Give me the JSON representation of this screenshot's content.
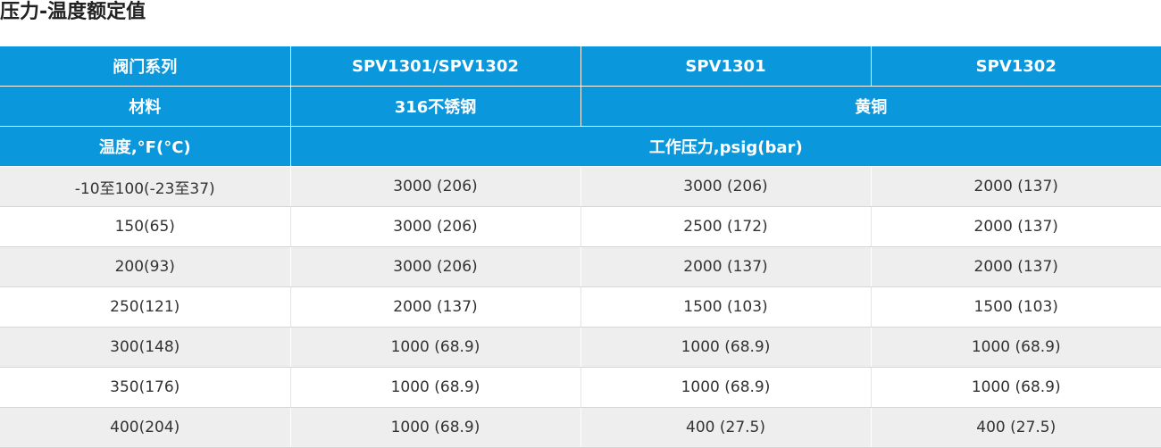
{
  "title": "压力-温度额定值",
  "header": {
    "row1": [
      "阀门系列",
      "SPV1301/SPV1302",
      "SPV1301",
      "SPV1302"
    ],
    "row2": [
      "材料",
      "316不锈钢",
      "黄铜"
    ],
    "row3": [
      "温度,°F(°C)",
      "工作压力,psig(bar)"
    ]
  },
  "rows": [
    [
      "-10至100(-23至37)",
      "3000 (206)",
      "3000 (206)",
      "2000 (137)"
    ],
    [
      "150(65)",
      "3000 (206)",
      "2500 (172)",
      "2000 (137)"
    ],
    [
      "200(93)",
      "3000 (206)",
      "2000 (137)",
      "2000 (137)"
    ],
    [
      "250(121)",
      "2000 (137)",
      "1500 (103)",
      "1500 (103)"
    ],
    [
      "300(148)",
      "1000 (68.9)",
      "1000 (68.9)",
      "1000 (68.9)"
    ],
    [
      "350(176)",
      "1000 (68.9)",
      "1000 (68.9)",
      "1000 (68.9)"
    ],
    [
      "400(204)",
      "1000 (68.9)",
      "400 (27.5)",
      "400 (27.5)"
    ]
  ],
  "colors": {
    "header_bg": "#0a97dc",
    "header_text": "#ffffff",
    "stripe_bg": "#eeeeee"
  }
}
